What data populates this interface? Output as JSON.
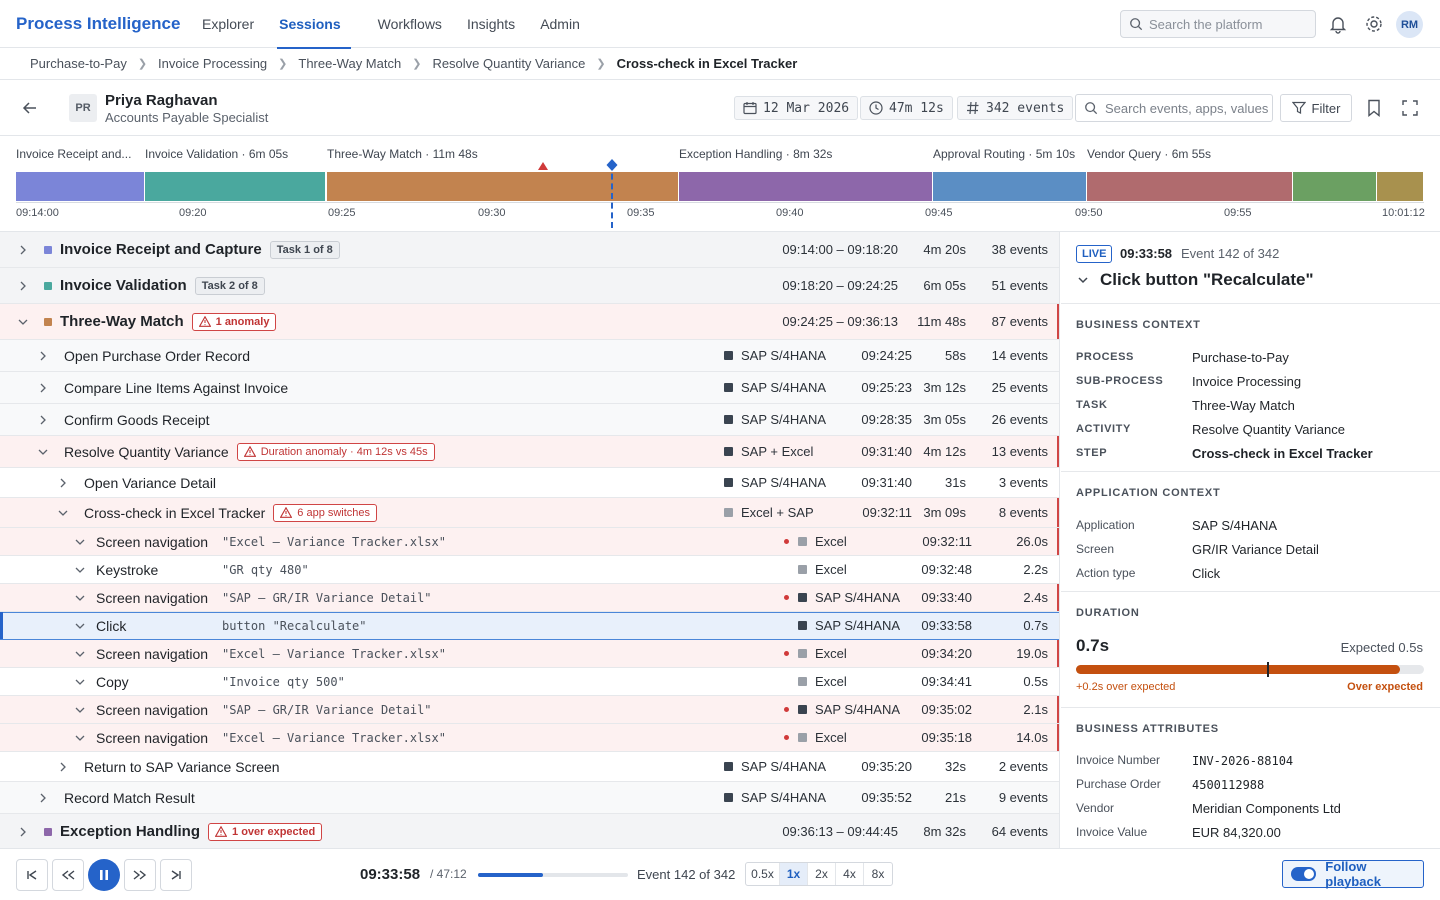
{
  "brand": "Process Intelligence",
  "nav": {
    "tabs": [
      "Explorer",
      "Sessions",
      "Workflows",
      "Insights",
      "Admin"
    ],
    "active": "Sessions"
  },
  "search": {
    "placeholder": "Search the platform"
  },
  "user_initials": "RM",
  "breadcrumb": [
    "Purchase-to-Pay",
    "Invoice Processing",
    "Three-Way Match",
    "Resolve Quantity Variance",
    "Cross-check in Excel Tracker"
  ],
  "session": {
    "initials": "PR",
    "name": "Priya Raghavan",
    "role": "Accounts Payable Specialist",
    "date": "12 Mar 2026",
    "duration": "47m 12s",
    "events": "342 events",
    "event_search_placeholder": "Search events, apps, values",
    "filter_label": "Filter"
  },
  "timeline": {
    "labels": [
      "Invoice Receipt and...",
      "Invoice Validation · 6m 05s",
      "Three-Way Match · 11m 48s",
      "Exception Handling · 8m 32s",
      "Approval Routing · 5m 10s",
      "Vendor Query · 6m 55s"
    ],
    "ticks": [
      "09:14:00",
      "09:20",
      "09:25",
      "09:30",
      "09:35",
      "09:40",
      "09:45",
      "09:50",
      "09:55",
      "10:01:12"
    ],
    "segment_colors": [
      "#7b85d8",
      "#4aa89e",
      "#c2834f",
      "#8d67aa",
      "#5b8ec4",
      "#b06b6e",
      "#6ba062",
      "#a8914e"
    ]
  },
  "tasks": {
    "t1": {
      "title": "Invoice Receipt and Capture",
      "badge": "Task 1 of 8",
      "range": "09:14:00 – 09:18:20",
      "dur": "4m 20s",
      "events": "38 events",
      "color": "#7b85d8"
    },
    "t2": {
      "title": "Invoice Validation",
      "badge": "Task 2 of 8",
      "range": "09:18:20 – 09:24:25",
      "dur": "6m 05s",
      "events": "51 events",
      "color": "#4aa89e"
    },
    "t3": {
      "title": "Three-Way Match",
      "badge": "1 anomaly",
      "range": "09:24:25 – 09:36:13",
      "dur": "11m 48s",
      "events": "87 events",
      "color": "#c2834f"
    },
    "t3_steps": [
      {
        "title": "Open Purchase Order Record",
        "app": "SAP S/4HANA",
        "time": "09:24:25",
        "dur": "58s",
        "events": "14 events"
      },
      {
        "title": "Compare Line Items Against Invoice",
        "app": "SAP S/4HANA",
        "time": "09:25:23",
        "dur": "3m 12s",
        "events": "25 events"
      },
      {
        "title": "Confirm Goods Receipt",
        "app": "SAP S/4HANA",
        "time": "09:28:35",
        "dur": "3m 05s",
        "events": "26 events"
      },
      {
        "title": "Resolve Quantity Variance",
        "badge": "Duration anomaly · 4m 12s vs 45s",
        "app": "SAP + Excel",
        "time": "09:31:40",
        "dur": "4m 12s",
        "events": "13 events"
      }
    ],
    "sub_steps": [
      {
        "title": "Open Variance Detail",
        "app": "SAP S/4HANA",
        "time": "09:31:40",
        "dur": "31s",
        "events": "3 events"
      },
      {
        "title": "Cross-check in Excel Tracker",
        "badge": "6 app switches",
        "app": "Excel + SAP",
        "time": "09:32:11",
        "dur": "3m 09s",
        "events": "8 events"
      }
    ],
    "events": [
      {
        "action": "Screen navigation",
        "detail": "\"Excel — Variance Tracker.xlsx\"",
        "app": "Excel",
        "time": "09:32:11",
        "dur": "26.0s"
      },
      {
        "action": "Keystroke",
        "detail": "\"GR qty 480\"",
        "app": "Excel",
        "time": "09:32:48",
        "dur": "2.2s"
      },
      {
        "action": "Screen navigation",
        "detail": "\"SAP — GR/IR Variance Detail\"",
        "app": "SAP S/4HANA",
        "time": "09:33:40",
        "dur": "2.4s"
      },
      {
        "action": "Click",
        "detail": "button \"Recalculate\"",
        "app": "SAP S/4HANA",
        "time": "09:33:58",
        "dur": "0.7s"
      },
      {
        "action": "Screen navigation",
        "detail": "\"Excel — Variance Tracker.xlsx\"",
        "app": "Excel",
        "time": "09:34:20",
        "dur": "19.0s"
      },
      {
        "action": "Copy",
        "detail": "\"Invoice qty 500\"",
        "app": "Excel",
        "time": "09:34:41",
        "dur": "0.5s"
      },
      {
        "action": "Screen navigation",
        "detail": "\"SAP — GR/IR Variance Detail\"",
        "app": "SAP S/4HANA",
        "time": "09:35:02",
        "dur": "2.1s"
      },
      {
        "action": "Screen navigation",
        "detail": "\"Excel — Variance Tracker.xlsx\"",
        "app": "Excel",
        "time": "09:35:18",
        "dur": "14.0s"
      }
    ],
    "after_sub": {
      "title": "Return to SAP Variance Screen",
      "app": "SAP S/4HANA",
      "time": "09:35:20",
      "dur": "32s",
      "events": "2 events"
    },
    "after_step": {
      "title": "Record Match Result",
      "app": "SAP S/4HANA",
      "time": "09:35:52",
      "dur": "21s",
      "events": "9 events"
    },
    "t4": {
      "title": "Exception Handling",
      "badge": "1 over expected",
      "range": "09:36:13 – 09:44:45",
      "dur": "8m 32s",
      "events": "64 events",
      "color": "#8d67aa"
    }
  },
  "panel": {
    "live": "LIVE",
    "time": "09:33:58",
    "event_label": "Event 142 of 342",
    "title": "Click button \"Recalculate\"",
    "business_context": {
      "heading": "BUSINESS CONTEXT",
      "rows": [
        {
          "k": "PROCESS",
          "v": "Purchase-to-Pay"
        },
        {
          "k": "SUB-PROCESS",
          "v": "Invoice Processing"
        },
        {
          "k": "TASK",
          "v": "Three-Way Match"
        },
        {
          "k": "ACTIVITY",
          "v": "Resolve Quantity Variance"
        },
        {
          "k": "STEP",
          "v": "Cross-check in Excel Tracker"
        }
      ]
    },
    "app_context": {
      "heading": "APPLICATION CONTEXT",
      "rows": [
        {
          "k": "Application",
          "v": "SAP S/4HANA"
        },
        {
          "k": "Screen",
          "v": "GR/IR Variance Detail"
        },
        {
          "k": "Action type",
          "v": "Click"
        }
      ]
    },
    "duration": {
      "heading": "DURATION",
      "value": "0.7s",
      "expected": "Expected 0.5s",
      "over": "+0.2s over expected",
      "status": "Over expected",
      "fill_fraction": 0.93,
      "expected_fraction": 0.55
    },
    "attributes": {
      "heading": "BUSINESS ATTRIBUTES",
      "rows": [
        {
          "k": "Invoice Number",
          "v": "INV-2026-88104"
        },
        {
          "k": "Purchase Order",
          "v": "4500112988"
        },
        {
          "k": "Vendor",
          "v": "Meridian Components Ltd"
        },
        {
          "k": "Invoice Value",
          "v": "EUR 84,320.00"
        }
      ]
    }
  },
  "playback": {
    "time": "09:33:58",
    "total": "/ 47:12",
    "progress_fraction": 0.43,
    "event_label": "Event 142 of 342",
    "speeds": [
      "0.5x",
      "1x",
      "2x",
      "4x",
      "8x"
    ],
    "active_speed": "1x",
    "follow_label": "Follow playback"
  },
  "colors": {
    "accent": "#2563c9",
    "anomaly": "#d04545",
    "sap": "#3a4450",
    "excel": "#9aa0a8"
  }
}
